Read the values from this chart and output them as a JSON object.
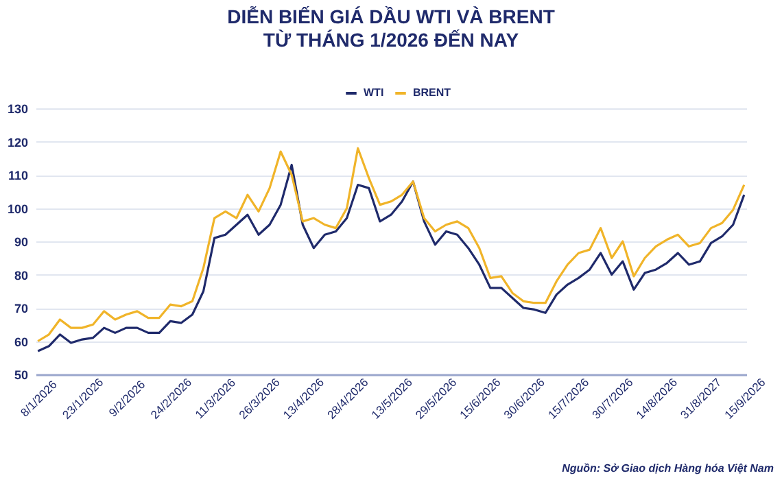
{
  "chart_data": {
    "type": "line",
    "title": "DIỄN BIẾN GIÁ DẦU WTI VÀ BRENT\nTỪ THÁNG 1/2026 ĐẾN NAY",
    "annotations": [
      "Nguồn: Sở Giao dịch Hàng hóa Việt Nam"
    ],
    "categories": [
      "8/1/2026",
      null,
      null,
      null,
      "23/1/2026",
      null,
      null,
      null,
      "9/2/2026",
      null,
      null,
      null,
      "24/2/2026",
      null,
      null,
      null,
      "11/3/2026",
      null,
      null,
      null,
      "26/3/2026",
      null,
      null,
      null,
      "13/4/2026",
      null,
      null,
      null,
      "28/4/2026",
      null,
      null,
      null,
      "13/5/2026",
      null,
      null,
      null,
      "29/5/2026",
      null,
      null,
      null,
      "15/6/2026",
      null,
      null,
      null,
      "30/6/2026",
      null,
      null,
      null,
      "15/7/2026",
      null,
      null,
      null,
      "30/7/2026",
      null,
      null,
      null,
      "14/8/2026",
      null,
      null,
      null,
      "31/8/2027",
      null,
      null,
      null,
      "15/9/2026"
    ],
    "series": [
      {
        "name": "WTI",
        "color": "#1f2a6b",
        "values": [
          57,
          58.5,
          62,
          59.5,
          60.5,
          61,
          64,
          62.5,
          64,
          64,
          62.5,
          62.5,
          66,
          65.5,
          68,
          75,
          91,
          92,
          95,
          98,
          92,
          95,
          101,
          113,
          95,
          88,
          92,
          93,
          97,
          107,
          106,
          96,
          98,
          102,
          108,
          96,
          89,
          93,
          92,
          88,
          83,
          76,
          76,
          73,
          70,
          69.5,
          68.5,
          74,
          77,
          79,
          81.5,
          86.5,
          80,
          84,
          75.5,
          80.5,
          81.5,
          83.5,
          86.5,
          83,
          84,
          89.5,
          91.5,
          95,
          104
        ]
      },
      {
        "name": "BRENT",
        "color": "#f0b429",
        "values": [
          60,
          62,
          66.5,
          64,
          64,
          65,
          69,
          66.5,
          68,
          69,
          67,
          67,
          71,
          70.5,
          72,
          82,
          97,
          99,
          97,
          104,
          99,
          106,
          117,
          110,
          96,
          97,
          95,
          94,
          100,
          118,
          109,
          101,
          102,
          104,
          108,
          97,
          93,
          95,
          96,
          94,
          88,
          79,
          79.5,
          74.5,
          72,
          71.5,
          71.5,
          78,
          83,
          86.5,
          87.5,
          94,
          85,
          90,
          79.5,
          85,
          88.5,
          90.5,
          92,
          88.5,
          89.5,
          94,
          95.5,
          99.5,
          107
        ]
      }
    ],
    "ylim": [
      50,
      130
    ],
    "yticks": [
      50,
      60,
      70,
      80,
      90,
      100,
      110,
      120,
      130
    ],
    "grid": "y",
    "legend": "top"
  }
}
